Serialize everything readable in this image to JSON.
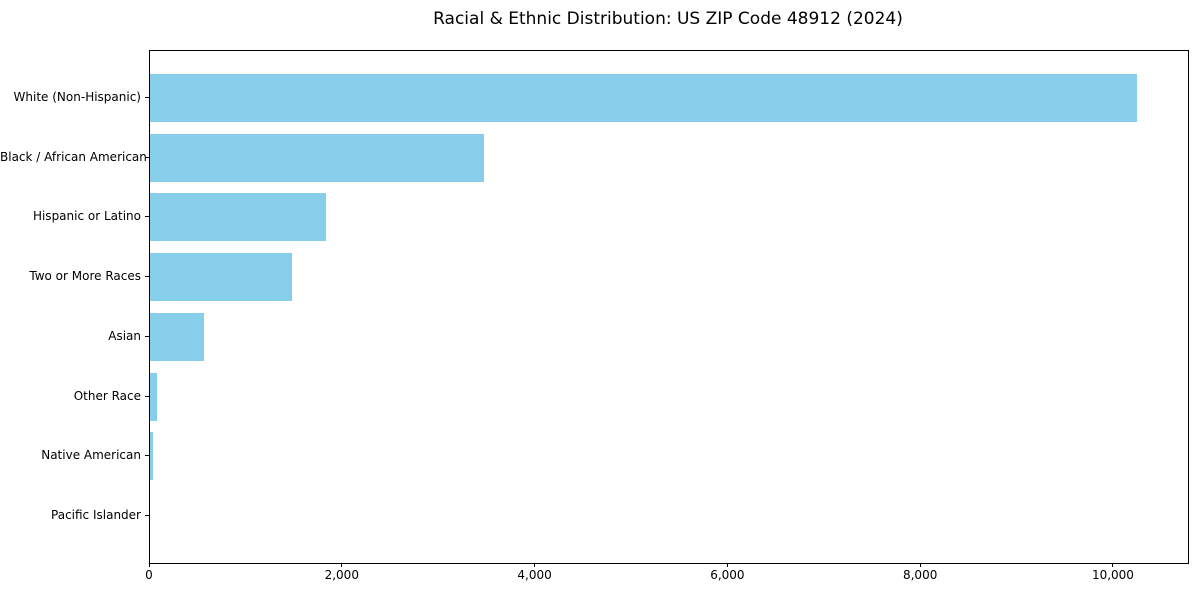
{
  "chart_data": {
    "type": "bar",
    "orientation": "horizontal",
    "title": "Racial & Ethnic Distribution: US ZIP Code 48912 (2024)",
    "categories": [
      "White (Non-Hispanic)",
      "Black / African American",
      "Hispanic or Latino",
      "Two or More Races",
      "Asian",
      "Other Race",
      "Native American",
      "Pacific Islander"
    ],
    "values": [
      10240,
      3460,
      1825,
      1470,
      555,
      75,
      30,
      0
    ],
    "xlabel": "",
    "ylabel": "",
    "xlim": [
      0,
      10768
    ],
    "xticks": [
      0,
      2000,
      4000,
      6000,
      8000,
      10000
    ],
    "xtick_labels": [
      "0",
      "2,000",
      "4,000",
      "6,000",
      "8,000",
      "10,000"
    ],
    "bar_color": "#87CEEB",
    "grid": false,
    "legend_position": "none"
  }
}
